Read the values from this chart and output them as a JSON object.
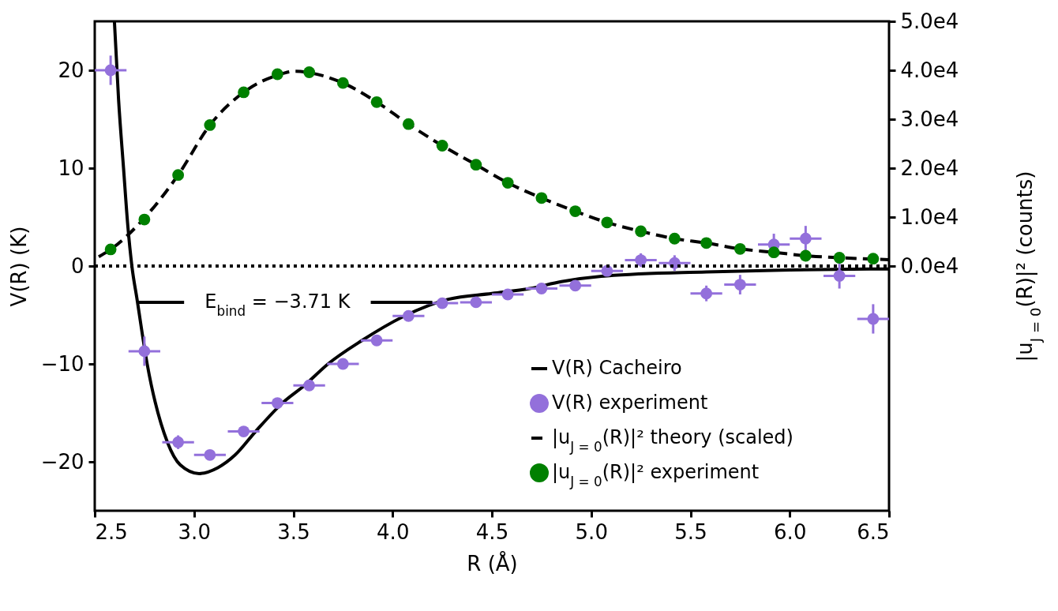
{
  "chart_data": {
    "type": "line",
    "xlabel": "R (Å)",
    "ylabel": "V(R) (K)",
    "y2label": "|u$_{J = 0}$(R)|² (counts)",
    "xlim": [
      2.5,
      6.5
    ],
    "xticks": [
      2.5,
      {
        "value": 3,
        "label": "3.0"
      },
      3.5,
      {
        "value": 4,
        "label": "4.0"
      },
      4.5,
      {
        "value": 5,
        "label": "5.0"
      },
      5.5,
      {
        "value": 6,
        "label": "6.0"
      },
      6.5
    ],
    "ylim": [
      -25,
      25
    ],
    "yticks": [
      -20,
      -10,
      0,
      10,
      20
    ],
    "y2lim": [
      -50000,
      50000
    ],
    "y2ticks": [
      {
        "value": 0,
        "label": "0.0e4"
      },
      {
        "value": 10000,
        "label": "1.0e4"
      },
      {
        "value": 20000,
        "label": "2.0e4"
      },
      {
        "value": 30000,
        "label": "3.0e4"
      },
      {
        "value": 40000,
        "label": "4.0e4"
      },
      {
        "value": 50000,
        "label": "5.0e4"
      }
    ],
    "legend": "bottom right",
    "annotations": [
      "E$_{bind}$ = −3.71 K"
    ],
    "series": [
      {
        "name": "V(R) Cacheiro",
        "color": "#000000",
        "line_style": "solid",
        "x": [
          2.599,
          2.62,
          2.645,
          2.667,
          2.687,
          2.713,
          2.764,
          2.866,
          2.93,
          3.026,
          3.12,
          3.207,
          3.31,
          3.445,
          3.556,
          3.675,
          3.846,
          4.06,
          4.28,
          4.5,
          4.69,
          4.85,
          5.08,
          5.58,
          6.0,
          6.5
        ],
        "values": [
          25,
          17,
          10,
          4,
          0,
          -3.4,
          -10,
          -18,
          -20.3,
          -21.2,
          -20.6,
          -19.3,
          -16.9,
          -14.0,
          -12.2,
          -10.0,
          -7.6,
          -5.1,
          -3.4,
          -2.8,
          -2.3,
          -1.6,
          -1.0,
          -0.6,
          -0.4,
          -0.3
        ]
      },
      {
        "name": "V(R) experiment",
        "type": "scatter",
        "color": "#9370db",
        "marker": "circle",
        "x": [
          2.58,
          2.75,
          2.92,
          3.08,
          3.25,
          3.42,
          3.58,
          3.75,
          3.92,
          4.08,
          4.25,
          4.42,
          4.58,
          4.75,
          4.92,
          5.08,
          5.25,
          5.42,
          5.58,
          5.75,
          5.92,
          6.08,
          6.25,
          6.42
        ],
        "values": [
          20.0,
          -8.7,
          -18.0,
          -19.3,
          -16.9,
          -14.0,
          -12.2,
          -10.0,
          -7.6,
          -5.1,
          -3.8,
          -3.7,
          -2.9,
          -2.3,
          -2.0,
          -0.5,
          0.6,
          0.3,
          -2.8,
          -1.9,
          2.2,
          2.8,
          -1.0,
          -5.4
        ],
        "errors": [
          1.5,
          1.5,
          0.7,
          0.4,
          0.4,
          0.4,
          0.4,
          0.4,
          0.4,
          0.4,
          0.4,
          0.4,
          0.4,
          0.4,
          0.4,
          0.5,
          0.7,
          0.8,
          0.8,
          1.0,
          1.1,
          1.3,
          1.3,
          1.5
        ],
        "xerrors": [
          0.08,
          0.08,
          0.08,
          0.08,
          0.08,
          0.08,
          0.08,
          0.08,
          0.08,
          0.08,
          0.08,
          0.08,
          0.08,
          0.08,
          0.08,
          0.08,
          0.08,
          0.08,
          0.08,
          0.08,
          0.08,
          0.08,
          0.08,
          0.08
        ]
      },
      {
        "name": "|u$_{J = 0}$(R)|² theory (scaled)",
        "axis": "y2",
        "color": "#000000",
        "line_style": "dashed",
        "x": [
          2.52,
          2.58,
          2.75,
          2.92,
          3.08,
          3.25,
          3.42,
          3.51,
          3.58,
          3.75,
          3.92,
          4.08,
          4.25,
          4.42,
          4.58,
          4.75,
          4.92,
          5.08,
          5.25,
          5.42,
          5.58,
          5.75,
          5.92,
          6.08,
          6.25,
          6.5
        ],
        "values": [
          1900,
          3400,
          9800,
          18600,
          28800,
          35500,
          39000,
          39800,
          39500,
          37400,
          33500,
          29000,
          24600,
          20700,
          17000,
          13900,
          11200,
          8900,
          7100,
          5600,
          4700,
          3500,
          2800,
          2100,
          1700,
          1300
        ]
      },
      {
        "name": "|u$_{J = 0}$(R)|² experiment",
        "type": "scatter",
        "axis": "y2",
        "color": "#008000",
        "marker": "circle",
        "x": [
          2.58,
          2.75,
          2.92,
          3.08,
          3.25,
          3.42,
          3.58,
          3.75,
          3.92,
          4.08,
          4.25,
          4.42,
          4.58,
          4.75,
          4.92,
          5.08,
          5.25,
          5.42,
          5.58,
          5.75,
          5.92,
          6.08,
          6.25,
          6.42
        ],
        "values": [
          3400,
          9500,
          18600,
          28800,
          35500,
          39200,
          39600,
          37400,
          33500,
          29000,
          24600,
          20700,
          17000,
          13900,
          11200,
          8900,
          7100,
          5600,
          4700,
          3500,
          2800,
          2100,
          1700,
          1500
        ]
      },
      {
        "color": "#000000",
        "line_style": "dotted",
        "x": [
          2.5,
          6.5
        ],
        "values": [
          0,
          0
        ]
      },
      {
        "color": "#000000",
        "line_style": "solid",
        "x": [
          2.72,
          2.95,
          3.4,
          3.89,
          4.2
        ],
        "values": [
          -3.71,
          -3.71,
          null,
          -3.71,
          -3.71
        ]
      }
    ]
  }
}
